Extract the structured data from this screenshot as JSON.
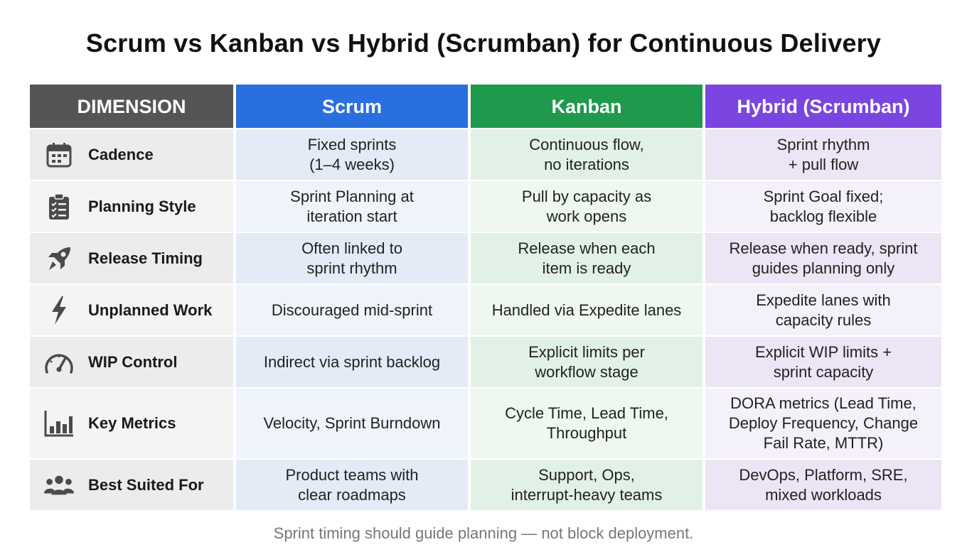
{
  "title": "Scrum vs Kanban vs Hybrid (Scrumban) for Continuous Delivery",
  "headers": {
    "dimension": "DIMENSION",
    "scrum": "Scrum",
    "kanban": "Kanban",
    "hybrid": "Hybrid (Scrumban)"
  },
  "colors": {
    "dimension_header": "#555555",
    "scrum_header": "#2a6fe0",
    "kanban_header": "#1f9a4c",
    "hybrid_header": "#7a45e0"
  },
  "rows": [
    {
      "icon": "calendar-icon",
      "dimension": "Cadence",
      "scrum": "Fixed sprints\n(1–4 weeks)",
      "kanban": "Continuous flow,\nno iterations",
      "hybrid": "Sprint rhythm\n+ pull flow"
    },
    {
      "icon": "clipboard-checklist-icon",
      "dimension": "Planning Style",
      "scrum": "Sprint Planning at\niteration start",
      "kanban": "Pull by capacity as\nwork opens",
      "hybrid": "Sprint Goal fixed;\nbacklog flexible"
    },
    {
      "icon": "rocket-icon",
      "dimension": "Release Timing",
      "scrum": "Often linked to\nsprint rhythm",
      "kanban": "Release when each\nitem is ready",
      "hybrid": "Release when ready, sprint\nguides planning only"
    },
    {
      "icon": "lightning-bolt-icon",
      "dimension": "Unplanned Work",
      "scrum": "Discouraged mid-sprint",
      "kanban": "Handled via Expedite lanes",
      "hybrid": "Expedite lanes with\ncapacity rules"
    },
    {
      "icon": "gauge-icon",
      "dimension": "WIP Control",
      "scrum": "Indirect via sprint backlog",
      "kanban": "Explicit limits per\nworkflow stage",
      "hybrid": "Explicit WIP limits +\nsprint capacity"
    },
    {
      "icon": "bar-chart-icon",
      "dimension": "Key Metrics",
      "scrum": "Velocity, Sprint Burndown",
      "kanban": "Cycle Time, Lead Time,\nThroughput",
      "hybrid": "DORA metrics (Lead Time,\nDeploy Frequency, Change\nFail Rate, MTTR)"
    },
    {
      "icon": "people-group-icon",
      "dimension": "Best Suited For",
      "scrum": "Product teams with\nclear roadmaps",
      "kanban": "Support, Ops,\ninterrupt-heavy teams",
      "hybrid": "DevOps, Platform, SRE,\nmixed workloads"
    }
  ],
  "footer": "Sprint timing should guide planning — not block deployment."
}
